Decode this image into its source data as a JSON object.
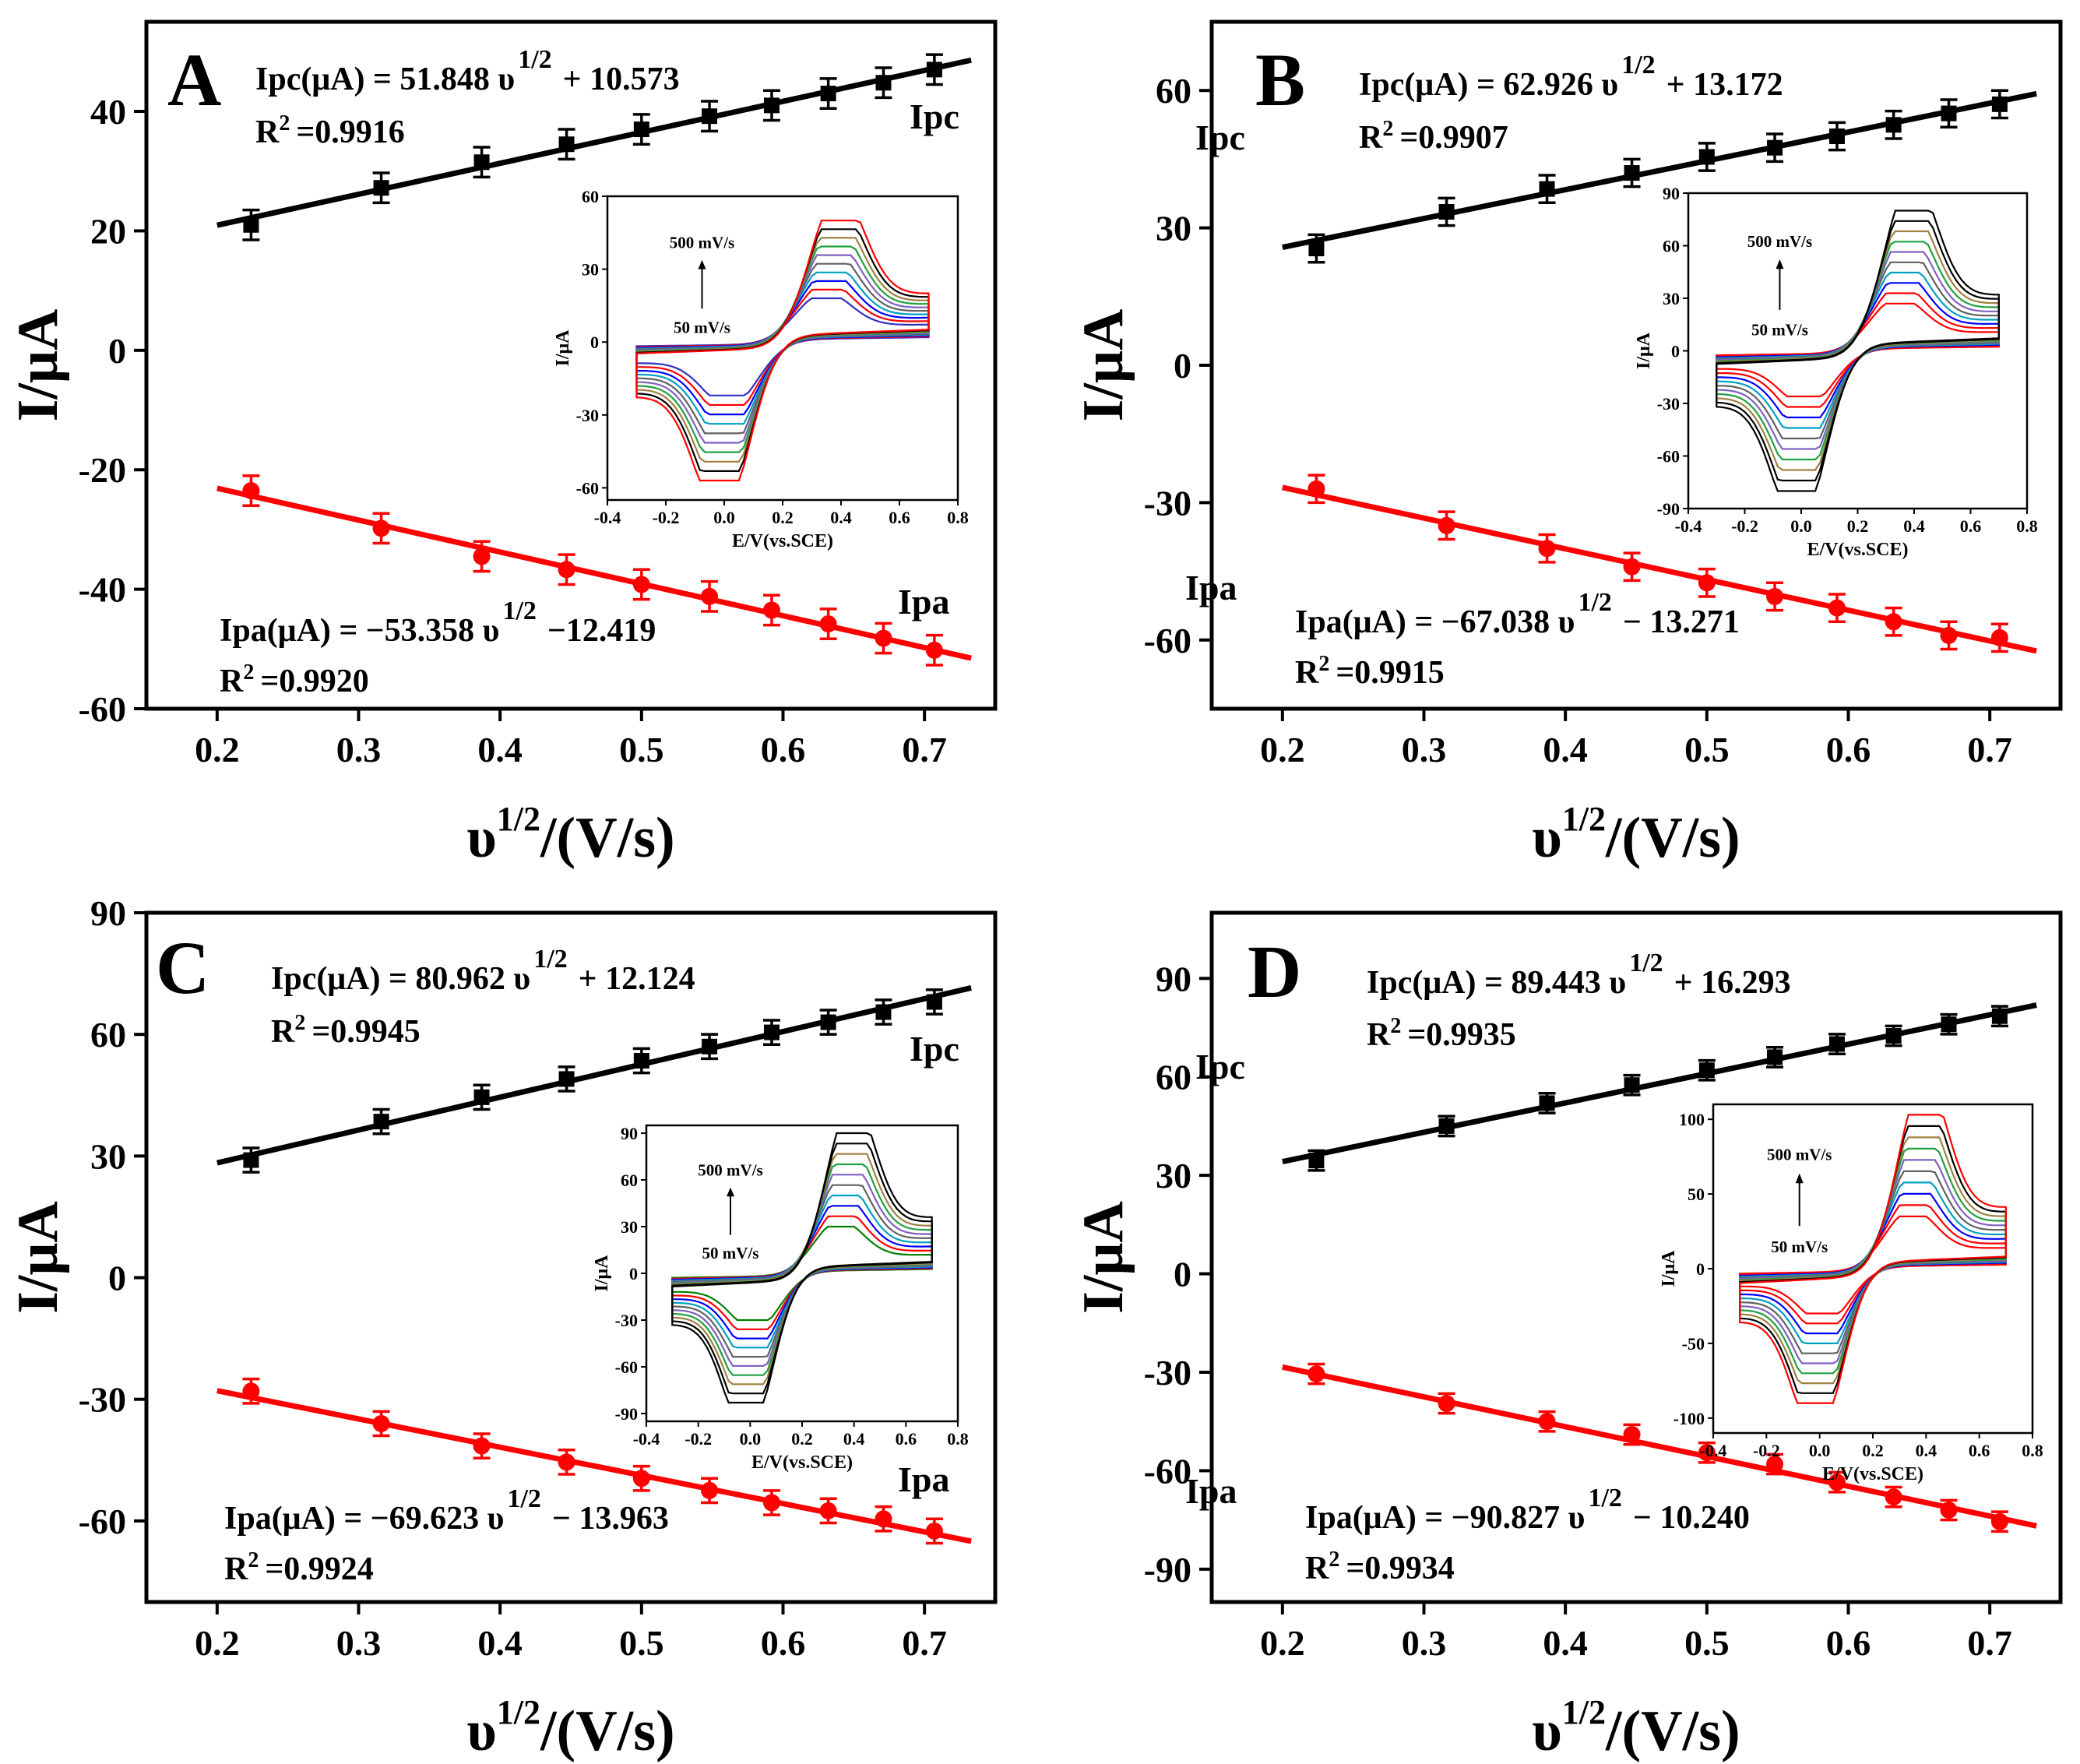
{
  "figure": {
    "x_axis_title": "υ",
    "x_axis_sup": "1/2",
    "x_axis_unit": "/(V/s)",
    "y_axis_title": "I/μA",
    "x_ticks": [
      "0.2",
      "0.3",
      "0.4",
      "0.5",
      "0.6",
      "0.7"
    ],
    "inset_x_label": "E/V(vs.SCE)",
    "inset_y_label": "I/μA",
    "inset_x_ticks": [
      "-0.4",
      "-0.2",
      "0.0",
      "0.2",
      "0.4",
      "0.6",
      "0.8"
    ],
    "inset_note_high": "500 mV/s",
    "inset_note_low": "50 mV/s",
    "series_labels": {
      "ipc": "Ipc",
      "ipa": "Ipa"
    },
    "colors": {
      "ipc": "#000000",
      "ipa": "#ff0000",
      "axis": "#000000"
    }
  },
  "chart_data": [
    {
      "type": "scatter",
      "panel": "A",
      "x": [
        0.224,
        0.316,
        0.387,
        0.447,
        0.5,
        0.548,
        0.592,
        0.632,
        0.671,
        0.707
      ],
      "xlim": [
        0.15,
        0.75
      ],
      "ylim": [
        -60,
        55
      ],
      "y_ticks": [
        "-60",
        "-40",
        "-20",
        "0",
        "20",
        "40"
      ],
      "y_tick_values": [
        -60,
        -40,
        -20,
        0,
        20,
        40
      ],
      "series": [
        {
          "name": "Ipc",
          "values": [
            21,
            27.2,
            31.5,
            34.5,
            37,
            39.2,
            41,
            43,
            44.8,
            47
          ],
          "error": 2.5,
          "fit": {
            "slope": 51.848,
            "intercept": 10.573
          },
          "eq_lhs": "Ipc(μA) = 51.848 υ",
          "eq_sup": "1/2",
          "eq_rhs": "+ 10.573",
          "r2_lhs": "R",
          "r2_sup": "2",
          "r2_rhs": "=0.9916"
        },
        {
          "name": "Ipa",
          "values": [
            -23.5,
            -29.8,
            -34.5,
            -36.7,
            -39.2,
            -41.2,
            -43.5,
            -45.8,
            -48.2,
            -50.2
          ],
          "error": 2.5,
          "fit": {
            "slope": -53.358,
            "intercept": -12.419
          },
          "eq_lhs": "Ipa(μA) = −53.358 υ",
          "eq_sup": "1/2",
          "eq_rhs": "−12.419",
          "r2_lhs": "R",
          "r2_sup": "2",
          "r2_rhs": "=0.9920"
        }
      ],
      "inset": {
        "ylim": [
          -65,
          60
        ],
        "y_ticks": [
          "-60",
          "-30",
          "0",
          "30",
          "60"
        ],
        "y_tick_values": [
          -60,
          -30,
          0,
          30,
          60
        ],
        "peak_max": 50,
        "peak_min": 18,
        "trough_max": -57,
        "trough_min": -22,
        "first_color": "#3030c0",
        "top_color": "#ff0000"
      }
    },
    {
      "type": "scatter",
      "panel": "B",
      "x": [
        0.224,
        0.316,
        0.387,
        0.447,
        0.5,
        0.548,
        0.592,
        0.632,
        0.671,
        0.707
      ],
      "xlim": [
        0.15,
        0.75
      ],
      "ylim": [
        -75,
        75
      ],
      "y_ticks": [
        "-60",
        "-30",
        "0",
        "30",
        "60"
      ],
      "y_tick_values": [
        -60,
        -30,
        0,
        30,
        60
      ],
      "series": [
        {
          "name": "Ipc",
          "values": [
            25.5,
            33.5,
            38.5,
            42,
            45.5,
            47.5,
            50,
            52.5,
            55,
            57
          ],
          "error": 3,
          "fit": {
            "slope": 62.926,
            "intercept": 13.172
          },
          "eq_lhs": "Ipc(μA) = 62.926 υ",
          "eq_sup": "1/2",
          "eq_rhs": "+ 13.172",
          "r2_lhs": "R",
          "r2_sup": "2",
          "r2_rhs": "=0.9907"
        },
        {
          "name": "Ipa",
          "values": [
            -27,
            -35,
            -40,
            -44,
            -47.5,
            -50.5,
            -53,
            -56,
            -59,
            -59.5
          ],
          "error": 3,
          "fit": {
            "slope": -67.038,
            "intercept": -13.271
          },
          "eq_lhs": "Ipa(μA) = −67.038 υ",
          "eq_sup": "1/2",
          "eq_rhs": "− 13.271",
          "r2_lhs": "R",
          "r2_sup": "2",
          "r2_rhs": "=0.9915"
        }
      ],
      "inset": {
        "ylim": [
          -90,
          90
        ],
        "y_ticks": [
          "-90",
          "-60",
          "-30",
          "0",
          "30",
          "60",
          "90"
        ],
        "y_tick_values": [
          -90,
          -60,
          -30,
          0,
          30,
          60,
          90
        ],
        "peak_max": 80,
        "peak_min": 27,
        "trough_max": -80,
        "trough_min": -26,
        "first_color": "#ff0000",
        "top_color": "#000000"
      }
    },
    {
      "type": "scatter",
      "panel": "C",
      "x": [
        0.224,
        0.316,
        0.387,
        0.447,
        0.5,
        0.548,
        0.592,
        0.632,
        0.671,
        0.707
      ],
      "xlim": [
        0.15,
        0.75
      ],
      "ylim": [
        -80,
        90
      ],
      "y_ticks": [
        "-60",
        "-30",
        "0",
        "30",
        "60",
        "90"
      ],
      "y_tick_values": [
        -60,
        -30,
        0,
        30,
        60,
        90
      ],
      "series": [
        {
          "name": "Ipc",
          "values": [
            29,
            38.5,
            44.5,
            49,
            53.5,
            57,
            60.5,
            63,
            65.5,
            68
          ],
          "error": 3,
          "fit": {
            "slope": 80.962,
            "intercept": 12.124
          },
          "eq_lhs": "Ipc(μA) = 80.962 υ",
          "eq_sup": "1/2",
          "eq_rhs": "+ 12.124",
          "r2_lhs": "R",
          "r2_sup": "2",
          "r2_rhs": "=0.9945"
        },
        {
          "name": "Ipa",
          "values": [
            -28,
            -36,
            -41.5,
            -45.5,
            -49.5,
            -52.5,
            -55.5,
            -57.5,
            -59.5,
            -62.5
          ],
          "error": 3,
          "fit": {
            "slope": -69.623,
            "intercept": -13.963
          },
          "eq_lhs": "Ipa(μA) = −69.623 υ",
          "eq_sup": "1/2",
          "eq_rhs": "− 13.963",
          "r2_lhs": "R",
          "r2_sup": "2",
          "r2_rhs": "=0.9924"
        }
      ],
      "inset": {
        "ylim": [
          -95,
          95
        ],
        "y_ticks": [
          "-90",
          "-60",
          "-30",
          "0",
          "30",
          "60",
          "90"
        ],
        "y_tick_values": [
          -90,
          -60,
          -30,
          0,
          30,
          60,
          90
        ],
        "peak_max": 90,
        "peak_min": 30,
        "trough_max": -83,
        "trough_min": -30,
        "first_color": "#008000",
        "top_color": "#000000"
      }
    },
    {
      "type": "scatter",
      "panel": "D",
      "x": [
        0.224,
        0.316,
        0.387,
        0.447,
        0.5,
        0.548,
        0.592,
        0.632,
        0.671,
        0.707
      ],
      "xlim": [
        0.15,
        0.75
      ],
      "ylim": [
        -100,
        110
      ],
      "y_ticks": [
        "-90",
        "-60",
        "-30",
        "0",
        "30",
        "60",
        "90"
      ],
      "y_tick_values": [
        -90,
        -60,
        -30,
        0,
        30,
        60,
        90
      ],
      "series": [
        {
          "name": "Ipc",
          "values": [
            34.5,
            45,
            52,
            57.5,
            62,
            66,
            70,
            72.5,
            76,
            78.5
          ],
          "error": 3,
          "fit": {
            "slope": 89.443,
            "intercept": 16.293
          },
          "eq_lhs": "Ipc(μA) = 89.443 υ",
          "eq_sup": "1/2",
          "eq_rhs": "+ 16.293",
          "r2_lhs": "R",
          "r2_sup": "2",
          "r2_rhs": "=0.9935"
        },
        {
          "name": "Ipa",
          "values": [
            -30.5,
            -39.5,
            -45,
            -49,
            -54.5,
            -58,
            -63.5,
            -68,
            -72,
            -75.5
          ],
          "error": 3,
          "fit": {
            "slope": -90.827,
            "intercept": -10.24
          },
          "eq_lhs": "Ipa(μA) = −90.827 υ",
          "eq_sup": "1/2",
          "eq_rhs": "− 10.240",
          "r2_lhs": "R",
          "r2_sup": "2",
          "r2_rhs": "=0.9934"
        }
      ],
      "inset": {
        "ylim": [
          -110,
          110
        ],
        "y_ticks": [
          "-100",
          "-50",
          "0",
          "50",
          "100"
        ],
        "y_tick_values": [
          -100,
          -50,
          0,
          50,
          100
        ],
        "peak_max": 103,
        "peak_min": 35,
        "trough_max": -90,
        "trough_min": -30,
        "first_color": "#ff0000",
        "top_color": "#ff0000"
      }
    }
  ]
}
